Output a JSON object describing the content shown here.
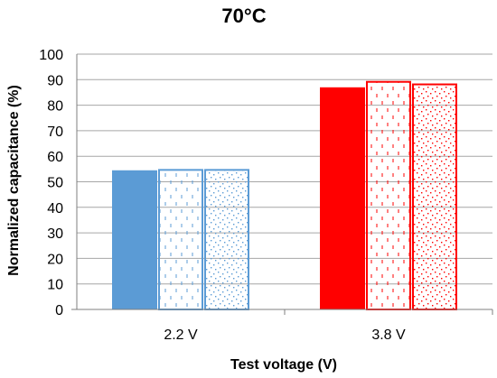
{
  "chart_data": {
    "type": "bar",
    "title": "70°C",
    "xlabel": "Test voltage (V)",
    "ylabel": "Normalized capacitance (%)",
    "categories": [
      "2.2 V",
      "3.8 V"
    ],
    "series": [
      {
        "values": [
          54.5,
          87.0
        ],
        "fill": "solid"
      },
      {
        "values": [
          55.0,
          89.5
        ],
        "fill": "dashed-vertical"
      },
      {
        "values": [
          55.0,
          88.5
        ],
        "fill": "dotted-diagonal"
      }
    ],
    "category_colors": [
      "#5b9bd5",
      "#ff0000"
    ],
    "ylim": [
      0,
      100
    ],
    "yticks": [
      0,
      10,
      20,
      30,
      40,
      50,
      60,
      70,
      80,
      90,
      100
    ],
    "grid": true,
    "legend": "none"
  }
}
